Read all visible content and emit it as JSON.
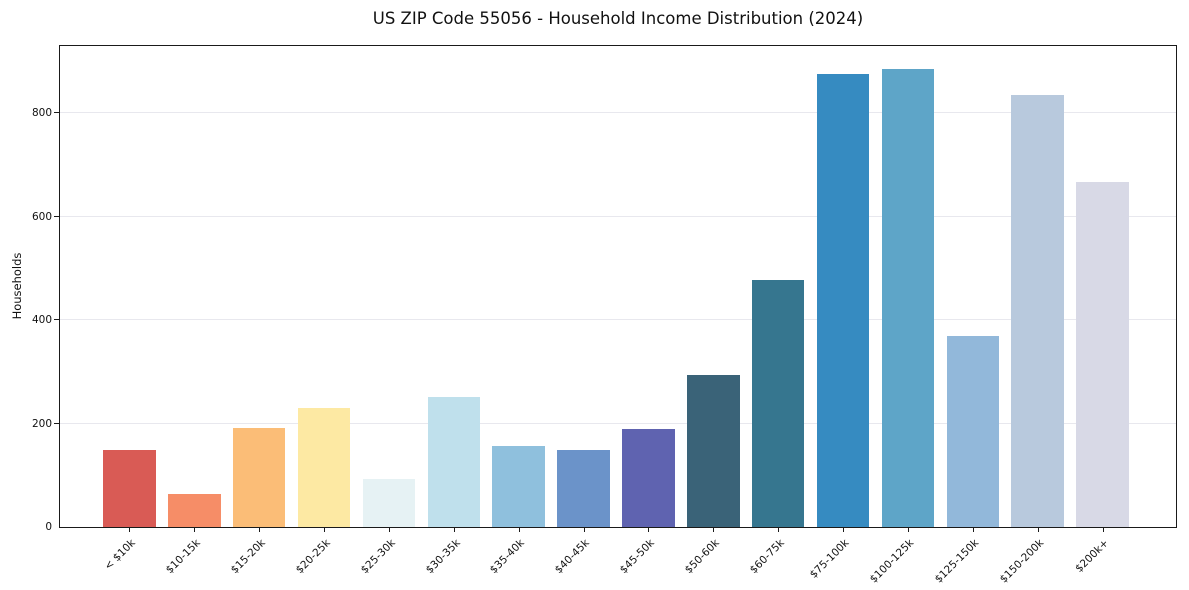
{
  "chart_data": {
    "type": "bar",
    "title": "US ZIP Code 55056 - Household Income Distribution (2024)",
    "xlabel": "",
    "ylabel": "Households",
    "categories": [
      "< $10k",
      "$10-15k",
      "$15-20k",
      "$20-25k",
      "$25-30k",
      "$30-35k",
      "$35-40k",
      "$40-45k",
      "$45-50k",
      "$50-60k",
      "$60-75k",
      "$75-100k",
      "$100-125k",
      "$125-150k",
      "$150-200k",
      "$200k+"
    ],
    "values": [
      148,
      63,
      192,
      230,
      92,
      251,
      157,
      148,
      190,
      294,
      477,
      875,
      886,
      369,
      836,
      668
    ],
    "bar_colors": [
      "#d95b55",
      "#f68d67",
      "#fbbd77",
      "#fde9a3",
      "#e6f2f4",
      "#bfe0ec",
      "#8fc0dd",
      "#6b93c9",
      "#5f63b0",
      "#3a6378",
      "#36768f",
      "#368bc1",
      "#5ea5c8",
      "#92b8da",
      "#b8c9dd",
      "#d8d9e6"
    ],
    "yticks": [
      0,
      200,
      400,
      600,
      800
    ],
    "ylim": [
      0,
      930
    ],
    "grid": "horizontal",
    "gridline_color": "#e8e8ee",
    "legend": "none",
    "background": "#ffffff"
  }
}
